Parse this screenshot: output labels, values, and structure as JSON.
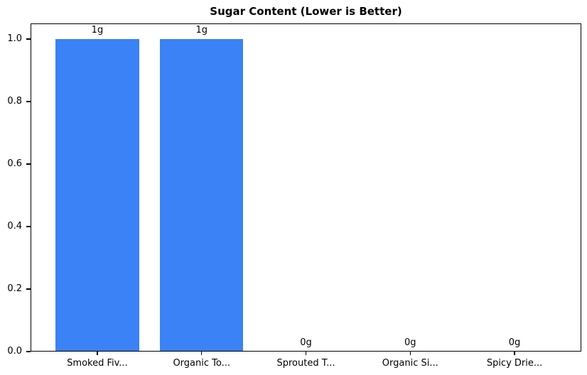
{
  "chart_data": {
    "type": "bar",
    "title": "Sugar Content (Lower is Better)",
    "categories": [
      "Smoked Fiv...",
      "Organic To...",
      "Sprouted T...",
      "Organic Si...",
      "Spicy Drie..."
    ],
    "values": [
      1,
      1,
      0,
      0,
      0
    ],
    "value_labels": [
      "1g",
      "1g",
      "0g",
      "0g",
      "0g"
    ],
    "xlabel": "",
    "ylabel": "",
    "ylim": [
      0,
      1.05
    ],
    "yticks": [
      0.0,
      0.2,
      0.4,
      0.6,
      0.8,
      1.0
    ],
    "ytick_labels": [
      "0.0",
      "0.2",
      "0.4",
      "0.6",
      "0.8",
      "1.0"
    ],
    "bar_color": "#3b82f6",
    "bar_width_fraction": 0.8,
    "x_padding_units": 0.64,
    "grid": false,
    "legend": null
  }
}
